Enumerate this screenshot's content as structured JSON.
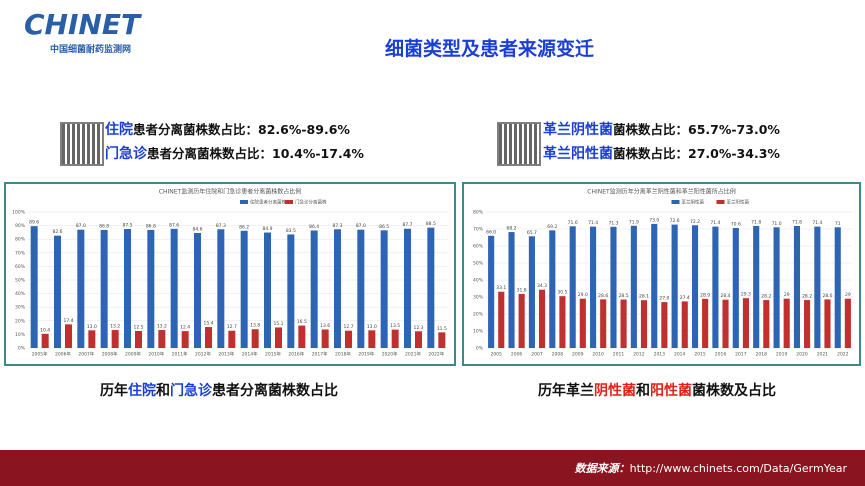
{
  "slide": {
    "logo": "CHINET",
    "logo_sub": "中国细菌耐药监测网",
    "title": "细菌类型及患者来源变迁",
    "left_stats": [
      [
        {
          "text": "住院",
          "color": "#1a3fd6"
        },
        {
          "text": "患者分离菌株数占比：82.6%-89.6%",
          "color": "#111"
        }
      ],
      [
        {
          "text": "门急诊",
          "color": "#1a3fd6"
        },
        {
          "text": "患者分离菌株数占比：10.4%-17.4%",
          "color": "#111"
        }
      ]
    ],
    "right_stats": [
      [
        {
          "text": "革兰阴性菌",
          "color": "#1a3fd6"
        },
        {
          "text": "菌株数占比：65.7%-73.0%",
          "color": "#111"
        }
      ],
      [
        {
          "text": "革兰阳性菌",
          "color": "#1a3fd6"
        },
        {
          "text": "菌株数占比：27.0%-34.3%",
          "color": "#111"
        }
      ]
    ],
    "left_caption": [
      {
        "text": "历年",
        "color": "#111"
      },
      {
        "text": "住院",
        "color": "#1a3fd6"
      },
      {
        "text": "和",
        "color": "#111"
      },
      {
        "text": "门急诊",
        "color": "#1a3fd6"
      },
      {
        "text": "患者分离菌株数占比",
        "color": "#111"
      }
    ],
    "right_caption": [
      {
        "text": "历年革兰",
        "color": "#111"
      },
      {
        "text": "阴性菌",
        "color": "#e0201b"
      },
      {
        "text": "和",
        "color": "#111"
      },
      {
        "text": "阳性菌",
        "color": "#e0201b"
      },
      {
        "text": "菌株数及占比",
        "color": "#111"
      }
    ],
    "source": "数据来源：",
    "url": "http://www.chinets.com/Data/GermYear"
  },
  "chart_data": [
    {
      "type": "bar",
      "title": "CHINET监测历年住院和门急诊患者分离菌株数占比例",
      "categories": [
        "2005年",
        "2006年",
        "2007年",
        "2008年",
        "2009年",
        "2010年",
        "2011年",
        "2012年",
        "2013年",
        "2014年",
        "2015年",
        "2016年",
        "2017年",
        "2018年",
        "2019年",
        "2020年",
        "2021年",
        "2022年"
      ],
      "series": [
        {
          "name": "住院患者分离菌株",
          "color": "#2e64b4",
          "values": [
            89.6,
            82.6,
            87.0,
            86.8,
            87.5,
            86.8,
            87.6,
            84.6,
            87.3,
            86.2,
            84.9,
            83.5,
            86.4,
            87.3,
            87.0,
            86.5,
            87.7,
            88.5
          ],
          "value_labels": [
            "89.6",
            "82.6",
            "87.0",
            "86.8",
            "87.5",
            "86.8",
            "87.6",
            "84.6",
            "87.3",
            "86.2",
            "84.9",
            "83.5",
            "86.4",
            "87.3",
            "87.0",
            "86.5",
            "87.7",
            "88.5"
          ]
        },
        {
          "name": "门急诊分离菌株",
          "color": "#c0302e",
          "values": [
            10.4,
            17.4,
            13.0,
            13.2,
            12.5,
            13.2,
            12.4,
            15.4,
            12.7,
            13.8,
            15.1,
            16.5,
            13.6,
            12.7,
            13.0,
            13.5,
            12.3,
            11.5
          ],
          "value_labels": [
            "10.4",
            "17.4",
            "13.0",
            "13.2",
            "12.5",
            "13.2",
            "12.4",
            "15.4",
            "12.7",
            "13.8",
            "15.1",
            "16.5",
            "13.6",
            "12.7",
            "13.0",
            "13.5",
            "12.3",
            "11.5"
          ]
        }
      ],
      "ylim": [
        0,
        100
      ],
      "yticks": [
        {
          "value": 0,
          "label": "0%"
        },
        {
          "value": 10,
          "label": "10%"
        },
        {
          "value": 20,
          "label": "20%"
        },
        {
          "value": 30,
          "label": "30%"
        },
        {
          "value": 40,
          "label": "40%"
        },
        {
          "value": 50,
          "label": "50%"
        },
        {
          "value": 60,
          "label": "60%"
        },
        {
          "value": 70,
          "label": "70%"
        },
        {
          "value": 80,
          "label": "80%"
        },
        {
          "value": 90,
          "label": "90%"
        },
        {
          "value": 100,
          "label": "100%"
        }
      ],
      "grid": true
    },
    {
      "type": "bar",
      "title": "CHINET监测历年分离革兰阴性菌和革兰阳性菌所占比例",
      "categories": [
        "2005",
        "2006",
        "2007",
        "2008",
        "2009",
        "2010",
        "2011",
        "2012",
        "2013",
        "2014",
        "2015",
        "2016",
        "2017",
        "2018",
        "2019",
        "2020",
        "2021",
        "2022"
      ],
      "series": [
        {
          "name": "革兰阴性菌",
          "color": "#2e64b4",
          "values": [
            66.0,
            68.2,
            65.7,
            69.2,
            71.6,
            71.4,
            71.3,
            71.9,
            73.0,
            72.6,
            72.2,
            71.4,
            70.6,
            71.8,
            71.0,
            71.8,
            71.4,
            71
          ],
          "value_labels": [
            "66.0",
            "68.2",
            "65.7",
            "69.2",
            "71.6",
            "71.4",
            "71.3",
            "71.9",
            "73.0",
            "72.6",
            "72.2",
            "71.4",
            "70.6",
            "71.8",
            "71.0",
            "71.8",
            "71.4",
            "71"
          ]
        },
        {
          "name": "革兰阳性菌",
          "color": "#c0302e",
          "values": [
            33.1,
            31.8,
            34.3,
            30.5,
            29.0,
            28.6,
            28.5,
            28.1,
            27.0,
            27.4,
            28.9,
            28.4,
            29.3,
            28.2,
            29,
            28.2,
            28.6,
            29
          ],
          "value_labels": [
            "33.1",
            "31.8",
            "34.3",
            "30.5",
            "29.0",
            "28.6",
            "28.5",
            "28.1",
            "27.0",
            "27.4",
            "28.9",
            "28.4",
            "29.3",
            "28.2",
            "29",
            "28.2",
            "28.6",
            "29"
          ]
        }
      ],
      "ylim": [
        0,
        80
      ],
      "yticks": [
        {
          "value": 0,
          "label": "0%"
        },
        {
          "value": 10,
          "label": "10%"
        },
        {
          "value": 20,
          "label": "20%"
        },
        {
          "value": 30,
          "label": "30%"
        },
        {
          "value": 40,
          "label": "40%"
        },
        {
          "value": 50,
          "label": "50%"
        },
        {
          "value": 60,
          "label": "60%"
        },
        {
          "value": 70,
          "label": "70%"
        },
        {
          "value": 80,
          "label": "80%"
        }
      ],
      "grid": true
    }
  ]
}
